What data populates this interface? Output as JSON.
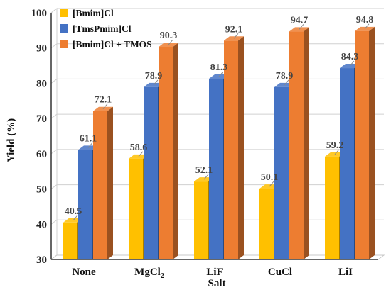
{
  "chart_data": {
    "type": "bar",
    "style": "3d-clustered",
    "title": "",
    "xlabel": "Salt",
    "ylabel": "Yield (%)",
    "ylim": [
      30,
      100
    ],
    "yticks": [
      30,
      40,
      50,
      60,
      70,
      80,
      90,
      100
    ],
    "grid": true,
    "legend_position": "top-left",
    "categories": [
      "None",
      "MgCl",
      "LiF",
      "CuCl",
      "LiI"
    ],
    "category_subscripts": [
      "",
      "2",
      "",
      "",
      ""
    ],
    "series": [
      {
        "name": "[Bmim]Cl",
        "color": "#FFC000",
        "values": [
          40.5,
          58.6,
          52.1,
          50.1,
          59.2
        ]
      },
      {
        "name": "[TmsPmim]Cl",
        "color": "#4472C4",
        "values": [
          61.1,
          78.9,
          81.3,
          78.9,
          84.3
        ]
      },
      {
        "name": "[Bmim]Cl + TMOS",
        "color": "#ED7D31",
        "values": [
          72.1,
          90.3,
          92.1,
          94.7,
          94.8
        ]
      }
    ]
  }
}
